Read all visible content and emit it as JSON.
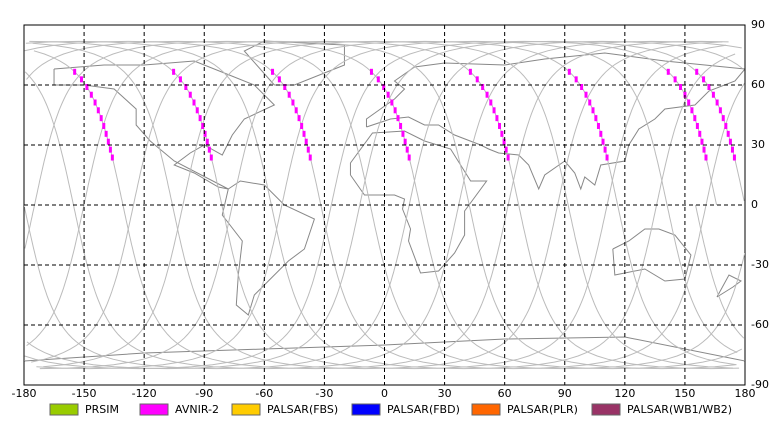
{
  "map": {
    "xticks": [
      -180,
      -150,
      -120,
      -90,
      -60,
      -30,
      0,
      30,
      60,
      90,
      120,
      150,
      180
    ],
    "yticks": [
      90,
      60,
      30,
      0,
      -30,
      -60,
      -90
    ],
    "xlim": [
      -180,
      180
    ],
    "ylim": [
      -90,
      90
    ],
    "legend": [
      {
        "name": "PRSIM",
        "color": "#99cc00"
      },
      {
        "name": "AVNIR-2",
        "color": "#ff00ff"
      },
      {
        "name": "PALSAR(FBS)",
        "color": "#ffcc00"
      },
      {
        "name": "PALSAR(FBD)",
        "color": "#0000ff"
      },
      {
        "name": "PALSAR(PLR)",
        "color": "#ff6600"
      },
      {
        "name": "PALSAR(WB1/WB2)",
        "color": "#993366"
      }
    ]
  }
}
